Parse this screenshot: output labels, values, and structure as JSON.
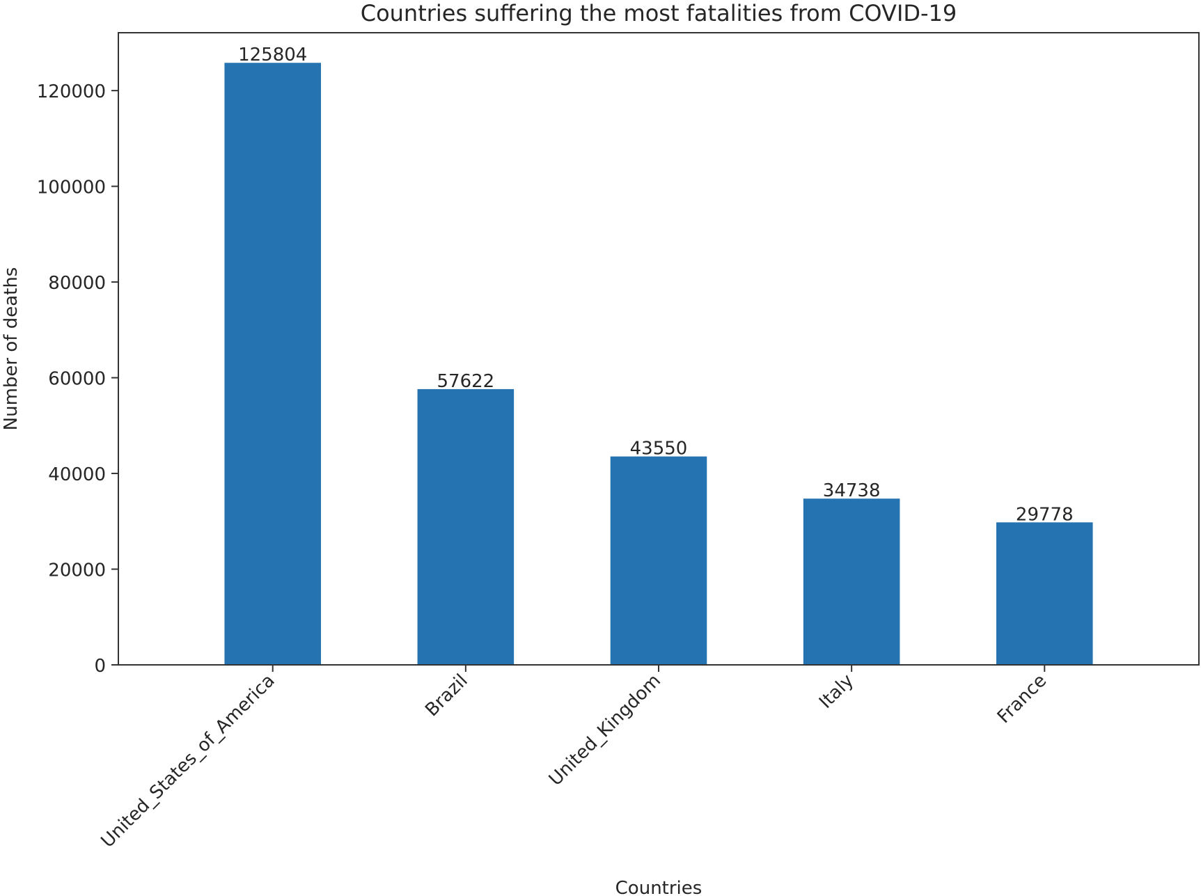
{
  "chart_data": {
    "type": "bar",
    "title": "Countries suffering the most fatalities from COVID-19",
    "xlabel": "Countries",
    "ylabel": "Number of deaths",
    "categories": [
      "United_States_of_America",
      "Brazil",
      "United_Kingdom",
      "Italy",
      "France"
    ],
    "values": [
      125804,
      57622,
      43550,
      34738,
      29778
    ],
    "data_labels": [
      "125804",
      "57622",
      "43550",
      "34738",
      "29778"
    ],
    "yticks": [
      0,
      20000,
      40000,
      60000,
      80000,
      100000,
      120000
    ],
    "ytick_labels": [
      "0",
      "20000",
      "40000",
      "60000",
      "80000",
      "100000",
      "120000"
    ],
    "ylim": [
      0,
      132094
    ],
    "grid": false,
    "bar_color": "#2673b1",
    "axis_color": "#333333"
  }
}
